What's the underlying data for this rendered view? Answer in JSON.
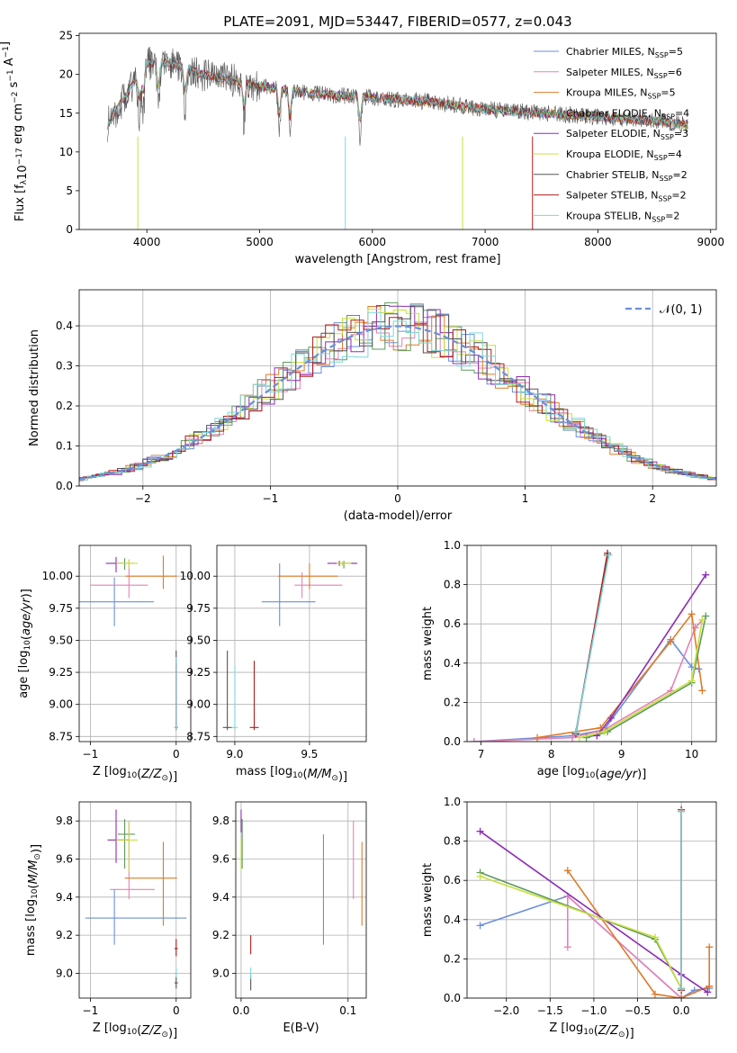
{
  "figure_title": "PLATE=2091, MJD=53447, FIBERID=0577, z=0.043",
  "colors": {
    "Chabrier MILES": "#6a8fdb",
    "Salpeter MILES": "#e681b8",
    "Kroupa MILES": "#e07b28",
    "Chabrier ELODIE": "#5e9a5e",
    "Salpeter ELODIE": "#8e2db5",
    "Kroupa ELODIE": "#c8e03a",
    "Chabrier STELIB": "#555555",
    "Salpeter STELIB": "#b01c1c",
    "Kroupa STELIB": "#7ed6d9"
  },
  "legend_spectrum": [
    {
      "label": "Chabrier MILES, N",
      "sub": "SSP",
      "suffix": "=5",
      "series": "Chabrier MILES"
    },
    {
      "label": "Salpeter MILES, N",
      "sub": "SSP",
      "suffix": "=6",
      "series": "Salpeter MILES"
    },
    {
      "label": "Kroupa MILES, N",
      "sub": "SSP",
      "suffix": "=5",
      "series": "Kroupa MILES"
    },
    {
      "label": "Chabrier ELODIE, N",
      "sub": "SSP",
      "suffix": "=4",
      "series": "Chabrier ELODIE"
    },
    {
      "label": "Salpeter ELODIE, N",
      "sub": "SSP",
      "suffix": "=3",
      "series": "Salpeter ELODIE"
    },
    {
      "label": "Kroupa ELODIE, N",
      "sub": "SSP",
      "suffix": "=4",
      "series": "Kroupa ELODIE"
    },
    {
      "label": "Chabrier STELIB, N",
      "sub": "SSP",
      "suffix": "=2",
      "series": "Chabrier STELIB"
    },
    {
      "label": "Salpeter STELIB, N",
      "sub": "SSP",
      "suffix": "=2",
      "series": "Salpeter STELIB"
    },
    {
      "label": "Kroupa STELIB, N",
      "sub": "SSP",
      "suffix": "=2",
      "series": "Kroupa STELIB"
    }
  ],
  "chart_data": [
    {
      "id": "spectrum",
      "type": "line",
      "xlabel": "wavelength [Angstrom, rest frame]",
      "ylabel": "Flux [f_λ10^-17 erg cm^-2 s^-1 A^-1]",
      "xlim": [
        3400,
        9050
      ],
      "ylim": [
        0,
        25.3
      ],
      "xticks": [
        4000,
        5000,
        6000,
        7000,
        8000,
        9000
      ],
      "yticks": [
        0,
        5,
        10,
        15,
        20,
        25
      ],
      "grid": false,
      "legend_position": "upper right",
      "continuum": {
        "x": [
          3650,
          3800,
          4000,
          4200,
          4500,
          5000,
          5500,
          6000,
          6500,
          7000,
          7500,
          8000,
          8500,
          8800
        ],
        "y": [
          13.5,
          17,
          21.5,
          21.5,
          20,
          18.5,
          17.5,
          17,
          16.5,
          15.5,
          15,
          14.5,
          14,
          13.5
        ]
      },
      "data_range": [
        3650,
        8800
      ]
    },
    {
      "id": "residuals",
      "type": "step",
      "xlabel": "(data-model)/error",
      "ylabel": "Normed distribution",
      "xlim": [
        -2.5,
        2.5
      ],
      "ylim": [
        0,
        0.49
      ],
      "xticks": [
        -2,
        -1,
        0,
        1,
        2
      ],
      "yticks": [
        0,
        0.1,
        0.2,
        0.3,
        0.4
      ],
      "grid": true,
      "legend_position": "upper right",
      "reference": {
        "name": "𝒩(0, 1)",
        "mean": 0,
        "sigma": 1
      }
    },
    {
      "id": "age_vs_Z",
      "type": "errorbar",
      "xlabel": "Z [log10(Z/Z☉)]",
      "ylabel": "age [log10(age/yr)]",
      "xlim": [
        -1.13,
        0.17
      ],
      "ylim": [
        8.71,
        10.24
      ],
      "xticks": [
        -1,
        0
      ],
      "yticks": [
        8.75,
        9.0,
        9.25,
        9.5,
        9.75,
        10.0
      ],
      "grid": true,
      "points": [
        {
          "series": "Chabrier MILES",
          "x": -0.72,
          "xerr": [
            0.56,
            0.46
          ],
          "y": 9.8,
          "yerr": [
            0.19,
            0.19
          ]
        },
        {
          "series": "Salpeter MILES",
          "x": -0.55,
          "xerr": [
            0.45,
            0.22
          ],
          "y": 9.93,
          "yerr": [
            0.1,
            0.2
          ]
        },
        {
          "series": "Kroupa MILES",
          "x": -0.15,
          "xerr": [
            0.44,
            0.16
          ],
          "y": 10.0,
          "yerr": [
            0.1,
            0.16
          ]
        },
        {
          "series": "Chabrier ELODIE",
          "x": -0.6,
          "xerr": [
            0.1,
            0.1
          ],
          "y": 10.1,
          "yerr": [
            0.05,
            0.04
          ]
        },
        {
          "series": "Salpeter ELODIE",
          "x": -0.7,
          "xerr": [
            0.12,
            0.1
          ],
          "y": 10.1,
          "yerr": [
            0.07,
            0.05
          ]
        },
        {
          "series": "Kroupa ELODIE",
          "x": -0.55,
          "xerr": [
            0.15,
            0.1
          ],
          "y": 10.1,
          "yerr": [
            0.04,
            0.03
          ]
        },
        {
          "series": "Chabrier STELIB",
          "x": 0.0,
          "xerr": [
            0.02,
            0.02
          ],
          "y": 8.82,
          "yerr": [
            0.02,
            0.6
          ]
        },
        {
          "series": "Salpeter STELIB",
          "x": 0.0,
          "xerr": [
            0.02,
            0.02
          ],
          "y": 8.82,
          "yerr": [
            0.02,
            0.5
          ]
        },
        {
          "series": "Kroupa STELIB",
          "x": 0.0,
          "xerr": [
            0.02,
            0.02
          ],
          "y": 8.82,
          "yerr": [
            0.02,
            0.55
          ]
        }
      ]
    },
    {
      "id": "age_vs_mass",
      "type": "errorbar",
      "xlabel": "mass [log10(M/M☉)]",
      "ylabel": "",
      "xlim": [
        8.88,
        9.88
      ],
      "ylim": [
        8.71,
        10.24
      ],
      "xticks": [
        9.0,
        9.5
      ],
      "yticks": [
        8.75,
        9.0,
        9.25,
        9.5,
        9.75,
        10.0
      ],
      "grid": true,
      "points": [
        {
          "series": "Chabrier MILES",
          "x": 9.3,
          "xerr": [
            0.12,
            0.24
          ],
          "y": 9.8,
          "yerr": [
            0.19,
            0.3
          ]
        },
        {
          "series": "Salpeter MILES",
          "x": 9.45,
          "xerr": [
            0.05,
            0.27
          ],
          "y": 9.93,
          "yerr": [
            0.1,
            0.1
          ]
        },
        {
          "series": "Kroupa MILES",
          "x": 9.5,
          "xerr": [
            0.21,
            0.19
          ],
          "y": 10.0,
          "yerr": [
            0.1,
            0.1
          ]
        },
        {
          "series": "Chabrier ELODIE",
          "x": 9.73,
          "xerr": [
            0.06,
            0.08
          ],
          "y": 10.1,
          "yerr": [
            0.04,
            0.02
          ]
        },
        {
          "series": "Salpeter ELODIE",
          "x": 9.7,
          "xerr": [
            0.08,
            0.12
          ],
          "y": 10.1,
          "yerr": [
            0.02,
            0.02
          ]
        },
        {
          "series": "Kroupa ELODIE",
          "x": 9.72,
          "xerr": [
            0.04,
            0.06
          ],
          "y": 10.1,
          "yerr": [
            0.02,
            0.01
          ]
        },
        {
          "series": "Chabrier STELIB",
          "x": 8.95,
          "xerr": [
            0.03,
            0.03
          ],
          "y": 8.82,
          "yerr": [
            0.02,
            0.6
          ]
        },
        {
          "series": "Salpeter STELIB",
          "x": 9.13,
          "xerr": [
            0.03,
            0.03
          ],
          "y": 8.82,
          "yerr": [
            0.02,
            0.52
          ]
        },
        {
          "series": "Kroupa STELIB",
          "x": 9.0,
          "xerr": [
            0.02,
            0.02
          ],
          "y": 8.82,
          "yerr": [
            0.02,
            0.48
          ]
        }
      ]
    },
    {
      "id": "massweight_vs_age",
      "type": "line",
      "xlabel": "age [log10(age/yr)]",
      "ylabel": "mass weight",
      "xlim": [
        6.8,
        10.35
      ],
      "ylim": [
        0,
        1.0
      ],
      "xticks": [
        7,
        8,
        9,
        10
      ],
      "yticks": [
        0,
        0.2,
        0.4,
        0.6,
        0.8,
        1.0
      ],
      "grid": true,
      "series": [
        {
          "name": "Chabrier MILES",
          "x": [
            6.9,
            8.3,
            8.75,
            9.7,
            10.0,
            10.1
          ],
          "y": [
            0.0,
            0.03,
            0.06,
            0.52,
            0.38,
            0.37
          ]
        },
        {
          "name": "Salpeter MILES",
          "x": [
            6.9,
            8.3,
            8.75,
            9.7,
            10.05,
            10.15
          ],
          "y": [
            0.0,
            0.02,
            0.06,
            0.26,
            0.58,
            0.62
          ]
        },
        {
          "name": "Kroupa MILES",
          "x": [
            7.8,
            8.7,
            9.7,
            10.0,
            10.15
          ],
          "y": [
            0.02,
            0.07,
            0.51,
            0.65,
            0.26
          ]
        },
        {
          "name": "Chabrier ELODIE",
          "x": [
            8.5,
            8.8,
            10.0,
            10.2
          ],
          "y": [
            0.02,
            0.05,
            0.3,
            0.64
          ]
        },
        {
          "name": "Salpeter ELODIE",
          "x": [
            8.65,
            8.85,
            10.2
          ],
          "y": [
            0.03,
            0.12,
            0.85
          ]
        },
        {
          "name": "Kroupa ELODIE",
          "x": [
            8.4,
            8.75,
            10.0,
            10.15
          ],
          "y": [
            0.02,
            0.05,
            0.31,
            0.62
          ]
        },
        {
          "name": "Chabrier STELIB",
          "x": [
            8.35,
            8.8
          ],
          "y": [
            0.05,
            0.95
          ]
        },
        {
          "name": "Salpeter STELIB",
          "x": [
            8.35,
            8.8
          ],
          "y": [
            0.04,
            0.96
          ]
        },
        {
          "name": "Kroupa STELIB",
          "x": [
            8.35,
            8.82
          ],
          "y": [
            0.05,
            0.95
          ]
        }
      ]
    },
    {
      "id": "mass_vs_Z",
      "type": "errorbar",
      "xlabel": "Z [log10(Z/Z☉)]",
      "ylabel": "mass [log10(M/M☉)]",
      "xlim": [
        -1.13,
        0.17
      ],
      "ylim": [
        8.87,
        9.9
      ],
      "xticks": [
        -1,
        0
      ],
      "yticks": [
        9.0,
        9.2,
        9.4,
        9.6,
        9.8
      ],
      "grid": true,
      "points": [
        {
          "series": "Chabrier MILES",
          "x": -0.72,
          "xerr": [
            0.34,
            0.84
          ],
          "y": 9.29,
          "yerr": [
            0.14,
            0.15
          ]
        },
        {
          "series": "Salpeter MILES",
          "x": -0.55,
          "xerr": [
            0.22,
            0.3
          ],
          "y": 9.44,
          "yerr": [
            0.05,
            0.36
          ]
        },
        {
          "series": "Kroupa MILES",
          "x": -0.15,
          "xerr": [
            0.45,
            0.16
          ],
          "y": 9.5,
          "yerr": [
            0.25,
            0.19
          ]
        },
        {
          "series": "Chabrier ELODIE",
          "x": -0.6,
          "xerr": [
            0.08,
            0.12
          ],
          "y": 9.73,
          "yerr": [
            0.18,
            0.08
          ]
        },
        {
          "series": "Salpeter ELODIE",
          "x": -0.7,
          "xerr": [
            0.1,
            0.15
          ],
          "y": 9.7,
          "yerr": [
            0.12,
            0.16
          ]
        },
        {
          "series": "Kroupa ELODIE",
          "x": -0.55,
          "xerr": [
            0.15,
            0.1
          ],
          "y": 9.7,
          "yerr": [
            0.17,
            0.1
          ]
        },
        {
          "series": "Chabrier STELIB",
          "x": 0.0,
          "xerr": [
            0.02,
            0.02
          ],
          "y": 8.95,
          "yerr": [
            0.03,
            0.03
          ]
        },
        {
          "series": "Salpeter STELIB",
          "x": 0.0,
          "xerr": [
            0.02,
            0.02
          ],
          "y": 9.13,
          "yerr": [
            0.04,
            0.05
          ]
        },
        {
          "series": "Kroupa STELIB",
          "x": 0.0,
          "xerr": [
            0.02,
            0.02
          ],
          "y": 9.0,
          "yerr": [
            0.02,
            0.03
          ]
        }
      ]
    },
    {
      "id": "mass_vs_EBV",
      "type": "errorbar",
      "xlabel": "E(B-V)",
      "ylabel": "",
      "xlim": [
        -0.005,
        0.117
      ],
      "ylim": [
        8.87,
        9.9
      ],
      "xticks": [
        0.0,
        0.1
      ],
      "yticks": [
        9.0,
        9.2,
        9.4,
        9.6,
        9.8
      ],
      "grid": true,
      "points": [
        {
          "series": "Chabrier MILES",
          "x": 0.077,
          "y": 9.29,
          "yerr": [
            0.14,
            0.44
          ]
        },
        {
          "series": "Salpeter MILES",
          "x": 0.105,
          "y": 9.44,
          "yerr": [
            0.05,
            0.36
          ]
        },
        {
          "series": "Kroupa MILES",
          "x": 0.113,
          "y": 9.5,
          "yerr": [
            0.25,
            0.19
          ]
        },
        {
          "series": "Chabrier ELODIE",
          "x": 0.001,
          "y": 9.73,
          "yerr": [
            0.18,
            0.08
          ]
        },
        {
          "series": "Salpeter ELODIE",
          "x": 0.0,
          "y": 9.8,
          "yerr": [
            0.06,
            0.06
          ]
        },
        {
          "series": "Kroupa ELODIE",
          "x": 0.0,
          "y": 9.62,
          "yerr": [
            0.08,
            0.08
          ]
        },
        {
          "series": "Chabrier STELIB",
          "x": 0.009,
          "y": 8.95,
          "yerr": [
            0.04,
            0.04
          ]
        },
        {
          "series": "Salpeter STELIB",
          "x": 0.009,
          "y": 9.15,
          "yerr": [
            0.05,
            0.05
          ]
        },
        {
          "series": "Kroupa STELIB",
          "x": 0.009,
          "y": 9.0,
          "yerr": [
            0.03,
            0.03
          ]
        }
      ]
    },
    {
      "id": "massweight_vs_Z",
      "type": "line",
      "xlabel": "Z [log10(Z/Z☉)]",
      "ylabel": "mass weight",
      "xlim": [
        -2.45,
        0.4
      ],
      "ylim": [
        0,
        1.0
      ],
      "xticks": [
        -2.0,
        -1.5,
        -1.0,
        -0.5,
        0.0
      ],
      "yticks": [
        0,
        0.2,
        0.4,
        0.6,
        0.8,
        1.0
      ],
      "grid": true,
      "series": [
        {
          "name": "Chabrier MILES",
          "x": [
            -2.3,
            -1.3,
            0.0,
            0.15,
            0.32
          ],
          "y": [
            0.37,
            0.52,
            0.0,
            0.04,
            0.05
          ]
        },
        {
          "name": "Salpeter MILES",
          "x": [
            -1.3,
            -1.3,
            0.0,
            0.32
          ],
          "y": [
            0.26,
            0.52,
            0.0,
            0.06
          ]
        },
        {
          "name": "Kroupa MILES",
          "x": [
            -1.3,
            -0.3,
            0.0,
            0.32,
            0.32
          ],
          "y": [
            0.65,
            0.02,
            0.0,
            0.06,
            0.26
          ]
        },
        {
          "name": "Chabrier ELODIE",
          "x": [
            -2.3,
            -0.3,
            0.0
          ],
          "y": [
            0.64,
            0.3,
            0.05
          ]
        },
        {
          "name": "Salpeter ELODIE",
          "x": [
            -2.3,
            0.0,
            0.3
          ],
          "y": [
            0.85,
            0.12,
            0.03
          ]
        },
        {
          "name": "Kroupa ELODIE",
          "x": [
            -2.3,
            -0.3,
            0.0
          ],
          "y": [
            0.62,
            0.31,
            0.05
          ]
        },
        {
          "name": "Chabrier STELIB",
          "x": [
            0.0,
            0.0
          ],
          "y": [
            0.05,
            0.95
          ]
        },
        {
          "name": "Salpeter STELIB",
          "x": [
            0.0,
            0.0
          ],
          "y": [
            0.04,
            0.96
          ]
        },
        {
          "name": "Kroupa STELIB",
          "x": [
            0.0,
            0.0
          ],
          "y": [
            0.05,
            0.95
          ]
        }
      ]
    }
  ]
}
